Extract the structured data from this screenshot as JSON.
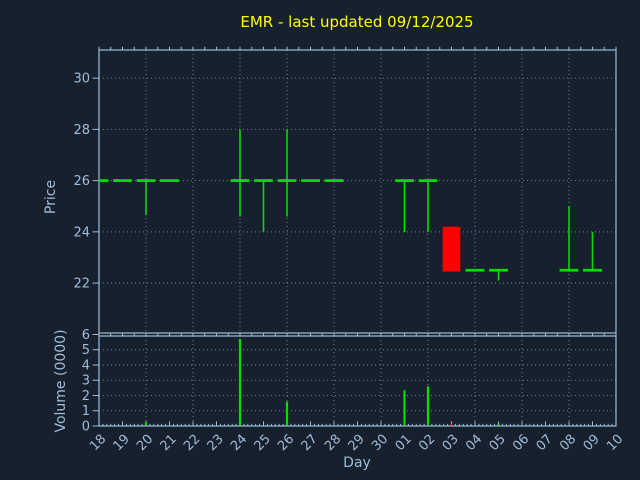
{
  "title": "EMR - last updated 09/12/2025",
  "colors": {
    "background": "#16212d",
    "axis": "#9fbcd8",
    "grid": "#94a1ae",
    "up": "#00dd00",
    "down": "#ff0000",
    "title": "#ffff00"
  },
  "axes": {
    "price_label": "Price",
    "volume_label": "Volume (0000)",
    "x_label": "Day"
  },
  "chart_data": [
    {
      "type": "candlestick",
      "title": "EMR - last updated 09/12/2025",
      "ylabel": "Price",
      "xlabel": "Day",
      "legend": "none",
      "grid": "dotted",
      "categories": [
        "18",
        "19",
        "20",
        "21",
        "22",
        "23",
        "24",
        "25",
        "26",
        "27",
        "28",
        "29",
        "30",
        "01",
        "02",
        "03",
        "04",
        "05",
        "06",
        "07",
        "08",
        "09",
        "10"
      ],
      "ylim": [
        20.05,
        31.1
      ],
      "yticks": [
        22,
        24,
        26,
        28,
        30
      ],
      "candles": [
        {
          "day": "18",
          "open": 26,
          "high": 26,
          "low": 26,
          "close": 26,
          "color": "green"
        },
        {
          "day": "19",
          "open": 26,
          "high": 26,
          "low": 26,
          "close": 26,
          "color": "green"
        },
        {
          "day": "20",
          "open": 26,
          "high": 26,
          "low": 24.65,
          "close": 26,
          "color": "green"
        },
        {
          "day": "21",
          "open": 26,
          "high": 26,
          "low": 26,
          "close": 26,
          "color": "green"
        },
        {
          "day": "24",
          "open": 26,
          "high": 28,
          "low": 24.6,
          "close": 26,
          "color": "green"
        },
        {
          "day": "25",
          "open": 26,
          "high": 26,
          "low": 24.0,
          "close": 26,
          "color": "green"
        },
        {
          "day": "26",
          "open": 26,
          "high": 28,
          "low": 24.6,
          "close": 26,
          "color": "green"
        },
        {
          "day": "27",
          "open": 26,
          "high": 26,
          "low": 26,
          "close": 26,
          "color": "green"
        },
        {
          "day": "28",
          "open": 26,
          "high": 26,
          "low": 26,
          "close": 26,
          "color": "green"
        },
        {
          "day": "01",
          "open": 26,
          "high": 26,
          "low": 24.0,
          "close": 26,
          "color": "green"
        },
        {
          "day": "02",
          "open": 26,
          "high": 26,
          "low": 24.0,
          "close": 26,
          "color": "green"
        },
        {
          "day": "03",
          "open": 24.2,
          "high": 24.2,
          "low": 22.45,
          "close": 22.45,
          "color": "red"
        },
        {
          "day": "04",
          "open": 22.5,
          "high": 22.5,
          "low": 22.5,
          "close": 22.5,
          "color": "green"
        },
        {
          "day": "05",
          "open": 22.5,
          "high": 22.5,
          "low": 22.1,
          "close": 22.5,
          "color": "green"
        },
        {
          "day": "08",
          "open": 22.5,
          "high": 25.0,
          "low": 22.5,
          "close": 22.5,
          "color": "green"
        },
        {
          "day": "09",
          "open": 22.5,
          "high": 24.0,
          "low": 22.5,
          "close": 22.5,
          "color": "green"
        }
      ]
    },
    {
      "type": "bar",
      "ylabel": "Volume (0000)",
      "xlabel": "Day",
      "categories": [
        "18",
        "19",
        "20",
        "21",
        "22",
        "23",
        "24",
        "25",
        "26",
        "27",
        "28",
        "29",
        "30",
        "01",
        "02",
        "03",
        "04",
        "05",
        "06",
        "07",
        "08",
        "09",
        "10"
      ],
      "ylim": [
        0,
        5.9
      ],
      "yticks": [
        0,
        1,
        2,
        3,
        4,
        5,
        6
      ],
      "bars": [
        {
          "day": "20",
          "value": 0.25,
          "color": "green"
        },
        {
          "day": "24",
          "value": 5.7,
          "color": "green"
        },
        {
          "day": "26",
          "value": 1.6,
          "color": "green"
        },
        {
          "day": "01",
          "value": 2.35,
          "color": "green"
        },
        {
          "day": "02",
          "value": 2.6,
          "color": "green"
        },
        {
          "day": "03",
          "value": 0.15,
          "color": "red"
        },
        {
          "day": "05",
          "value": 0.15,
          "color": "green"
        }
      ]
    }
  ]
}
